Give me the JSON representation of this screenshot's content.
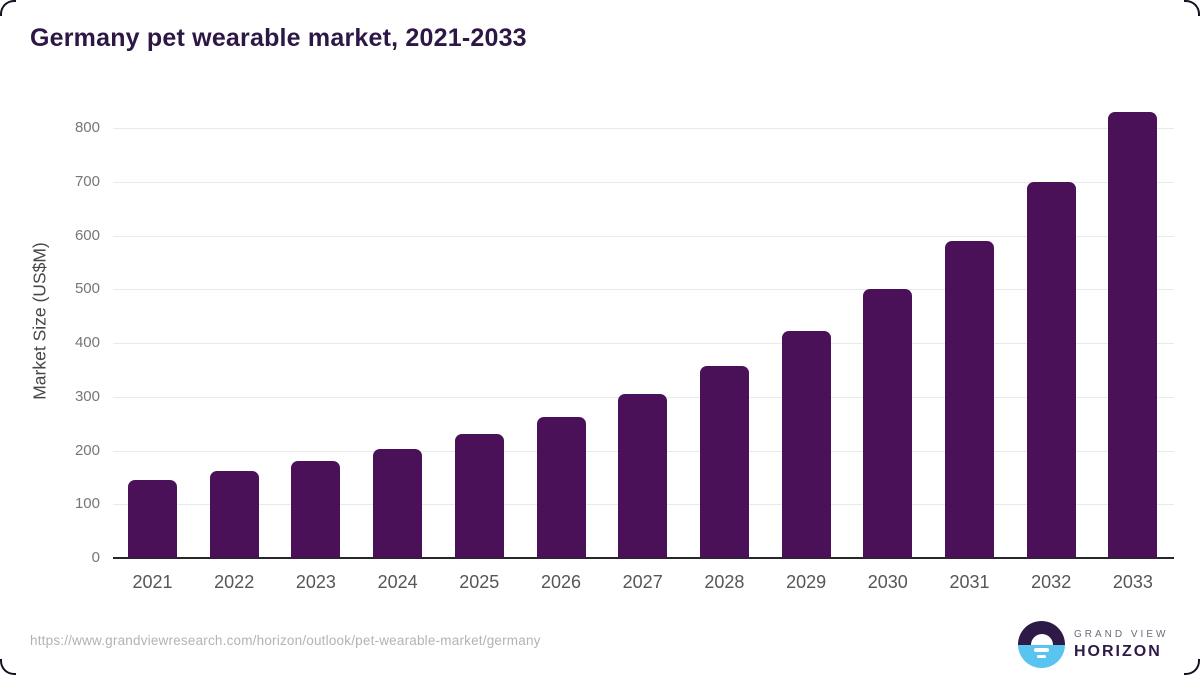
{
  "page": {
    "title": "Germany pet wearable market, 2021-2033"
  },
  "chart_data": {
    "type": "bar",
    "title": "Germany pet wearable market, 2021-2033",
    "categories": [
      "2021",
      "2022",
      "2023",
      "2024",
      "2025",
      "2026",
      "2027",
      "2028",
      "2029",
      "2030",
      "2031",
      "2032",
      "2033"
    ],
    "values": [
      145,
      162,
      181,
      203,
      230,
      263,
      306,
      357,
      422,
      500,
      590,
      700,
      830
    ],
    "xlabel": "",
    "ylabel": "Market Size (US$M)",
    "ylim": [
      0,
      800
    ],
    "yticks": [
      0,
      100,
      200,
      300,
      400,
      500,
      600,
      700,
      800
    ],
    "grid": true,
    "legend": "none",
    "bar_color": "#4a1158"
  },
  "footer": {
    "source_url": "https://www.grandviewresearch.com/horizon/outlook/pet-wearable-market/germany",
    "logo": {
      "line1": "GRAND VIEW",
      "line2": "HORIZON"
    }
  },
  "colors": {
    "bar": "#4a1158",
    "title_text": "#2c1745",
    "gridline": "#e9e9ec",
    "axis_line": "#26262b",
    "ytick_text": "#76767a",
    "xtick_text": "#56565a",
    "url_text": "#b3b3b6",
    "logo_dark": "#2d1a46",
    "logo_blue": "#59c4f0",
    "logo_gray_text": "#6f6a7a"
  }
}
